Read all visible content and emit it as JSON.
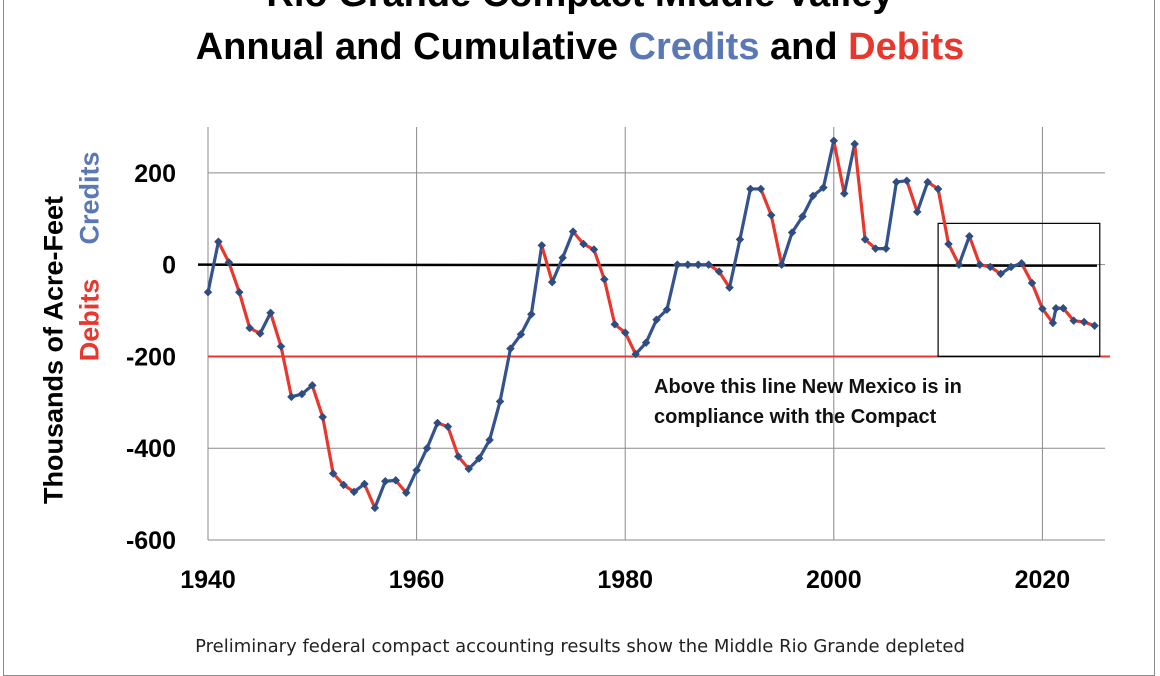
{
  "title": {
    "line1": "Rio Grande Compact Middle Valley",
    "line2_prefix": "Annual and Cumulative ",
    "line2_credits": "Credits",
    "line2_and": " and ",
    "line2_debits": "Debits"
  },
  "caption": "Preliminary federal compact accounting results show the Middle Rio Grande depleted",
  "chart_data": {
    "type": "line",
    "title": "Rio Grande Compact Middle Valley Annual and Cumulative Credits and Debits",
    "ylabel": "Thousands of  Acre-Feet",
    "ylabel_credits": "Credits",
    "ylabel_debits": "Debits",
    "xlabel": "",
    "xlim": [
      1940,
      2026
    ],
    "ylim": [
      -600,
      300
    ],
    "x_ticks": [
      1940,
      1960,
      1980,
      2000,
      2020
    ],
    "y_ticks": [
      200,
      0,
      -200,
      -400,
      -600
    ],
    "grid": true,
    "zero_line": 0,
    "compliance_line": -200,
    "annotation": {
      "line1": "Above this line New Mexico is in",
      "line2": "compliance with the Compact"
    },
    "highlight_box": {
      "x": [
        2010,
        2025.5
      ],
      "y": [
        -200,
        90
      ]
    },
    "colors": {
      "credit": "#33528f",
      "debit": "#e8382e",
      "marker": "#2f4d80",
      "zero": "#000000",
      "compliance": "#e8382e",
      "grid": "#8a8a8a"
    },
    "series": [
      {
        "x": [
          1940,
          1941,
          1942,
          1943,
          1944,
          1945,
          1946,
          1947,
          1948,
          1949,
          1950,
          1951,
          1952,
          1953,
          1954,
          1955,
          1956,
          1957,
          1958,
          1959,
          1960,
          1961,
          1962,
          1963,
          1964,
          1965,
          1966,
          1967,
          1968,
          1969,
          1970,
          1971,
          1972,
          1973,
          1974,
          1975,
          1976,
          1977,
          1978,
          1979,
          1980,
          1981,
          1982,
          1983,
          1984,
          1985,
          1986,
          1987,
          1988,
          1989,
          1990,
          1991,
          1992,
          1993,
          1994,
          1995,
          1996,
          1997,
          1998,
          1999,
          2000,
          2001,
          2002,
          2003,
          2004,
          2005,
          2006,
          2007,
          2008,
          2009,
          2010,
          2011,
          2012,
          2013,
          2014,
          2015,
          2016,
          2017,
          2018,
          2019,
          2020,
          2021,
          2021.3,
          2022,
          2023,
          2024,
          2025
        ],
        "values": [
          -60,
          50,
          5,
          -60,
          -138,
          -150,
          -105,
          -178,
          -288,
          -282,
          -263,
          -332,
          -455,
          -480,
          -495,
          -478,
          -530,
          -472,
          -470,
          -497,
          -448,
          -400,
          -345,
          -353,
          -418,
          -445,
          -422,
          -382,
          -298,
          -183,
          -152,
          -108,
          42,
          -38,
          15,
          72,
          45,
          33,
          -32,
          -130,
          -148,
          -195,
          -170,
          -120,
          -98,
          0,
          0,
          0,
          0,
          -15,
          -50,
          55,
          165,
          165,
          108,
          0,
          70,
          105,
          150,
          168,
          270,
          155,
          263,
          55,
          35,
          35,
          180,
          183,
          115,
          180,
          165,
          45,
          0,
          62,
          0,
          -5,
          -20,
          -5,
          3,
          -40,
          -96,
          -127,
          -95,
          -95,
          -122,
          -125,
          -133
        ]
      }
    ]
  }
}
